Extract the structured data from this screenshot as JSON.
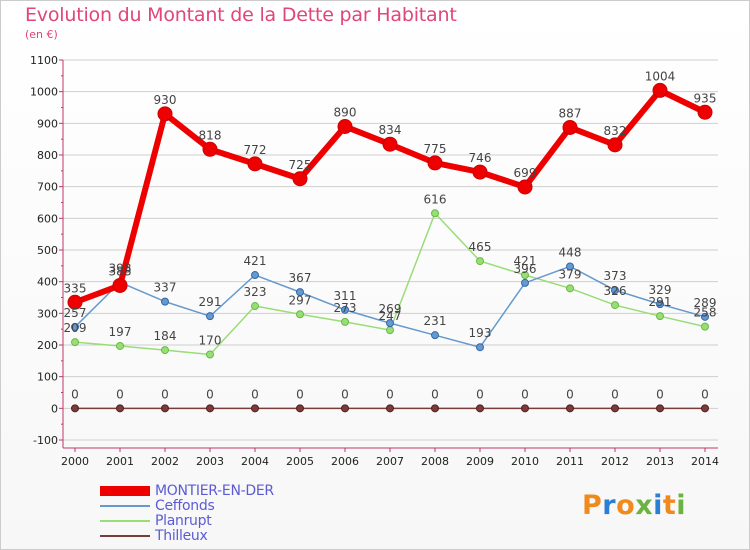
{
  "header": {
    "title": "Evolution du Montant de la Dette par Habitant",
    "subtitle": "(en €)"
  },
  "logo": {
    "letters": [
      "P",
      "r",
      "o",
      "x",
      "i",
      "t",
      "i"
    ],
    "colors": [
      "#f08a1c",
      "#2a7fd4",
      "#f08a1c",
      "#6db33f",
      "#2a7fd4",
      "#f08a1c",
      "#6db33f"
    ]
  },
  "colors": {
    "title": "#e0457b",
    "legend_text": "#5b5bd6",
    "grid": "#cfcfcf"
  },
  "chart_data": {
    "type": "line",
    "categories": [
      "2000",
      "2001",
      "2002",
      "2003",
      "2004",
      "2005",
      "2006",
      "2007",
      "2008",
      "2009",
      "2010",
      "2011",
      "2012",
      "2013",
      "2014"
    ],
    "ylim": [
      -100,
      1100
    ],
    "yticks": [
      "-100",
      "0",
      "100",
      "200",
      "300",
      "400",
      "500",
      "600",
      "700",
      "800",
      "900",
      "1000",
      "1100"
    ],
    "grid": "horizontal",
    "legend_position": "bottom-left",
    "series": [
      {
        "name": "MONTIER-EN-DER",
        "color": "#ee0000",
        "values": [
          335,
          388,
          930,
          818,
          772,
          725,
          890,
          834,
          775,
          746,
          699,
          887,
          832,
          1004,
          935
        ],
        "labels": [
          "335",
          "388",
          "930",
          "818",
          "772",
          "725",
          "890",
          "834",
          "775",
          "746",
          "699",
          "887",
          "832",
          "1004",
          "935"
        ]
      },
      {
        "name": "Ceffonds",
        "color": "#6699cc",
        "values": [
          257,
          398,
          337,
          291,
          421,
          367,
          311,
          269,
          231,
          193,
          396,
          448,
          373,
          329,
          289
        ],
        "labels": [
          "257",
          "398",
          "337",
          "291",
          "421",
          "367",
          "311",
          "269",
          "231",
          "193",
          "396",
          "448",
          "373",
          "329",
          "289"
        ]
      },
      {
        "name": "Planrupt",
        "color": "#99dd77",
        "values": [
          209,
          197,
          184,
          170,
          323,
          297,
          273,
          247,
          616,
          465,
          421,
          379,
          326,
          291,
          258
        ],
        "labels": [
          "209",
          "197",
          "184",
          "170",
          "323",
          "297",
          "273",
          "247",
          "616",
          "465",
          "421",
          "379",
          "326",
          "291",
          "258"
        ]
      },
      {
        "name": "Thilleux",
        "color": "#7a3b3b",
        "values": [
          0,
          0,
          0,
          0,
          0,
          0,
          0,
          0,
          0,
          0,
          0,
          0,
          0,
          0,
          0
        ],
        "labels": [
          "0",
          "0",
          "0",
          "0",
          "0",
          "0",
          "0",
          "0",
          "0",
          "0",
          "0",
          "0",
          "0",
          "0",
          "0"
        ]
      }
    ]
  }
}
